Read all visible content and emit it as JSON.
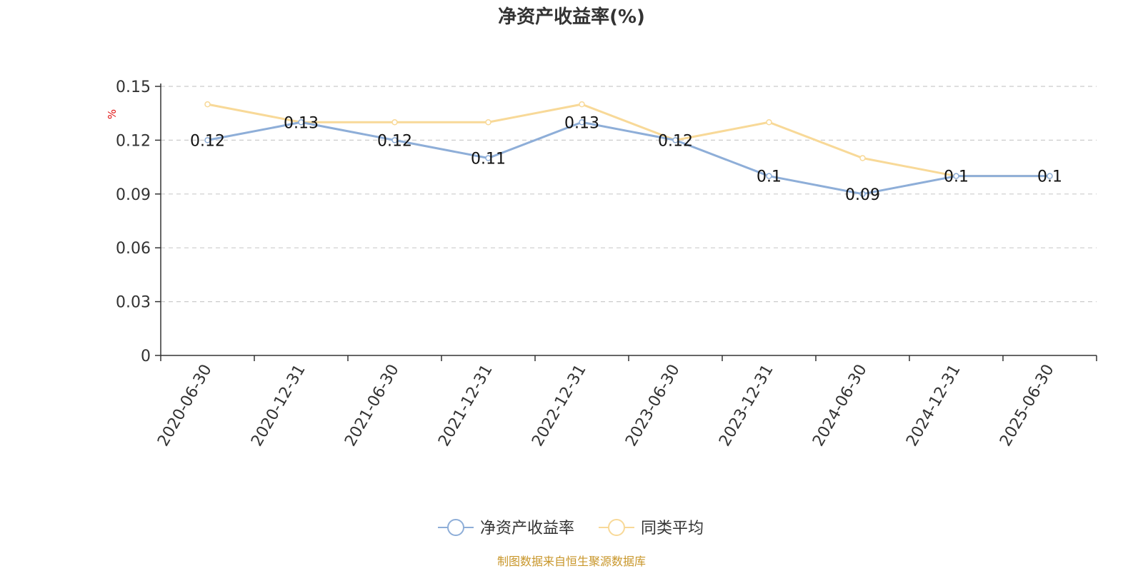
{
  "chart_data": {
    "type": "line",
    "title": "净资产收益率(%)",
    "ylabel": "%",
    "ylim": [
      0,
      0.15
    ],
    "yticks": [
      "0",
      "0.03",
      "0.06",
      "0.09",
      "0.12",
      "0.15"
    ],
    "grid": true,
    "legend_position": "bottom-center",
    "categories": [
      "2020-06-30",
      "2020-12-31",
      "2021-06-30",
      "2021-12-31",
      "2022-12-31",
      "2023-06-30",
      "2023-12-31",
      "2024-06-30",
      "2024-12-31",
      "2025-06-30"
    ],
    "series": [
      {
        "name": "净资产收益率",
        "color": "#8eaed8",
        "values": [
          0.12,
          0.13,
          0.12,
          0.11,
          0.13,
          0.12,
          0.1,
          0.09,
          0.1,
          0.1
        ],
        "labels": [
          "0.12",
          "0.13",
          "0.12",
          "0.11",
          "0.13",
          "0.12",
          "0.1",
          "0.09",
          "0.1",
          "0.1"
        ]
      },
      {
        "name": "同类平均",
        "color": "#f8d998",
        "values": [
          0.14,
          0.13,
          0.13,
          0.13,
          0.14,
          0.12,
          0.13,
          0.11,
          0.1,
          0.1
        ]
      }
    ]
  },
  "source": "制图数据来自恒生聚源数据库"
}
